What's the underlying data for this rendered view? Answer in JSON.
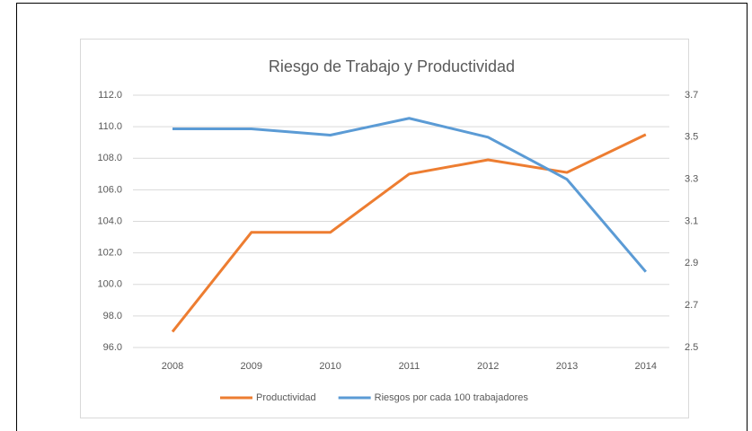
{
  "chart_data": {
    "type": "line",
    "title": "Riesgo de Trabajo y Productividad",
    "categories": [
      "2008",
      "2009",
      "2010",
      "2011",
      "2012",
      "2013",
      "2014"
    ],
    "series": [
      {
        "name": "Productividad",
        "color": "#ed7d31",
        "values": [
          97.0,
          103.3,
          103.3,
          107.0,
          107.9,
          107.1,
          109.5
        ]
      },
      {
        "name": "Riesgos por cada 100 trabajadores",
        "color": "#5b9bd5",
        "axis": "y2",
        "values": [
          3.54,
          3.54,
          3.51,
          3.59,
          3.5,
          3.3,
          2.86
        ]
      }
    ],
    "ylim": [
      96,
      112
    ],
    "yticks": [
      {
        "value": 96,
        "label": "96.0"
      },
      {
        "value": 98,
        "label": "98.0"
      },
      {
        "value": 100,
        "label": "100.0"
      },
      {
        "value": 102,
        "label": "102.0"
      },
      {
        "value": 104,
        "label": "104.0"
      },
      {
        "value": 106,
        "label": "106.0"
      },
      {
        "value": 108,
        "label": "108.0"
      },
      {
        "value": 110,
        "label": "110.0"
      },
      {
        "value": 112,
        "label": "112.0"
      }
    ],
    "y2lim": [
      2.5,
      3.7
    ],
    "y2ticks": [
      2.5,
      2.7,
      2.9,
      3.1,
      3.3,
      3.5,
      3.7
    ],
    "grid": true,
    "legend": "bottom"
  }
}
